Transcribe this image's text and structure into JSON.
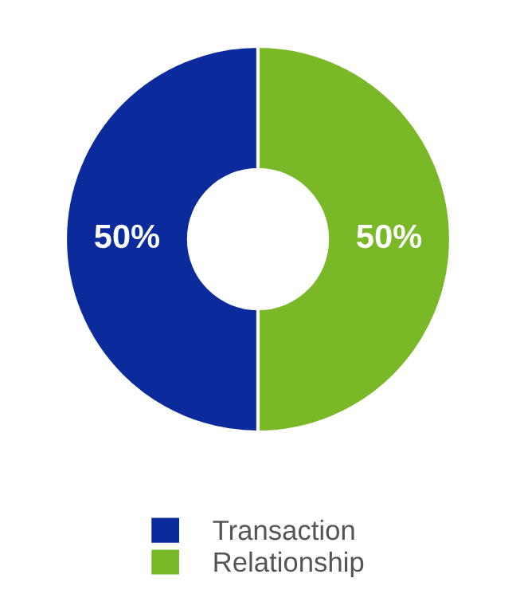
{
  "chart_data": {
    "type": "donut",
    "categories": [
      "Transaction",
      "Relationship"
    ],
    "values": [
      50,
      50
    ],
    "colors": [
      "#0b2a9c",
      "#79b928"
    ],
    "value_labels": [
      "50%",
      "50%"
    ],
    "legend": "bottom"
  }
}
